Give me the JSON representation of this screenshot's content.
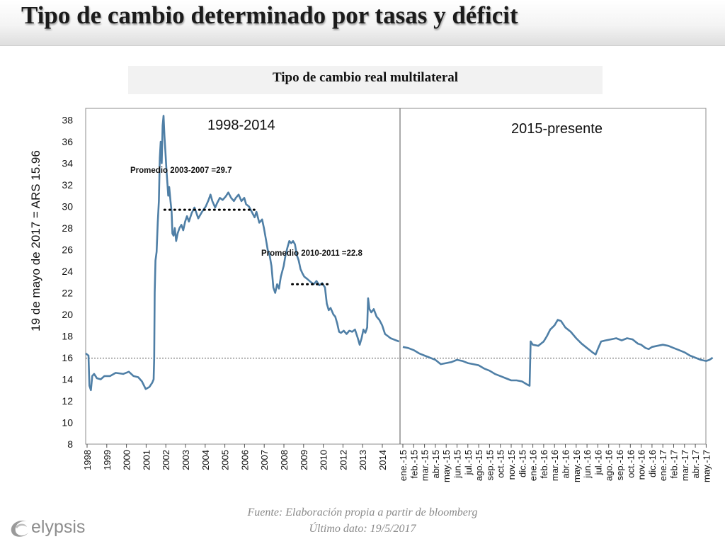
{
  "header": {
    "title": "Tipo de cambio determinado por tasas y déficit"
  },
  "chart_data": {
    "type": "line",
    "title": "Tipo de cambio real multilateral",
    "ylabel": "19 de mayo de 2017 = ARS 15.96",
    "xlabel": "",
    "ylim": [
      8,
      39
    ],
    "yticks": [
      8,
      10,
      12,
      14,
      16,
      18,
      20,
      22,
      24,
      26,
      28,
      30,
      32,
      34,
      36,
      38
    ],
    "reference_line": 15.96,
    "grid": false,
    "legend": "none",
    "x_segments": [
      {
        "label": "1998-2014",
        "x_start": 1998.0,
        "x_end": 2014.75,
        "ticks": [
          "1998",
          "1999",
          "2000",
          "2001",
          "2002",
          "2003",
          "2004",
          "2005",
          "2006",
          "2007",
          "2008",
          "2009",
          "2010",
          "2012",
          "2013",
          "2014"
        ]
      },
      {
        "label": "2015-presente",
        "ticks": [
          "ene.-15",
          "feb.-15",
          "mar.-15",
          "abr.-15",
          "may.-15",
          "jun.-15",
          "jul.-15",
          "ago.-15",
          "sep.-15",
          "oct.-15",
          "nov.-15",
          "dic.-15",
          "ene.-16",
          "feb.-16",
          "mar.-16",
          "abr.-16",
          "may.-16",
          "jun.-16",
          "jul.-16",
          "ago.-16",
          "sep.-16",
          "oct.-16",
          "nov.-16",
          "dic.-16",
          "ene.-17",
          "feb.-17",
          "mar.-17",
          "abr.-17",
          "may.-17"
        ]
      }
    ],
    "series": [
      {
        "segment": 0,
        "color": "#4f7fa6",
        "points": [
          [
            1998.0,
            16.4
          ],
          [
            1998.15,
            16.2
          ],
          [
            1998.2,
            13.4
          ],
          [
            1998.28,
            13.0
          ],
          [
            1998.35,
            14.3
          ],
          [
            1998.45,
            14.5
          ],
          [
            1998.6,
            14.1
          ],
          [
            1998.8,
            14.0
          ],
          [
            1999.0,
            14.3
          ],
          [
            1999.3,
            14.3
          ],
          [
            1999.6,
            14.6
          ],
          [
            2000.0,
            14.5
          ],
          [
            2000.3,
            14.7
          ],
          [
            2000.55,
            14.3
          ],
          [
            2000.8,
            14.2
          ],
          [
            2001.0,
            13.8
          ],
          [
            2001.2,
            13.1
          ],
          [
            2001.4,
            13.3
          ],
          [
            2001.55,
            13.7
          ],
          [
            2001.62,
            14.0
          ],
          [
            2001.65,
            16.0
          ],
          [
            2001.68,
            22.0
          ],
          [
            2001.72,
            25.0
          ],
          [
            2001.78,
            25.8
          ],
          [
            2001.84,
            28.5
          ],
          [
            2001.9,
            30.5
          ],
          [
            2001.95,
            34.5
          ],
          [
            2002.0,
            36.0
          ],
          [
            2002.05,
            34.0
          ],
          [
            2002.1,
            37.5
          ],
          [
            2002.15,
            38.4
          ],
          [
            2002.2,
            36.5
          ],
          [
            2002.25,
            35.0
          ],
          [
            2002.3,
            33.5
          ],
          [
            2002.36,
            32.0
          ],
          [
            2002.4,
            31.0
          ],
          [
            2002.45,
            31.8
          ],
          [
            2002.52,
            30.5
          ],
          [
            2002.58,
            29.5
          ],
          [
            2002.62,
            27.5
          ],
          [
            2002.68,
            27.3
          ],
          [
            2002.75,
            28.0
          ],
          [
            2002.82,
            26.8
          ],
          [
            2002.9,
            27.5
          ],
          [
            2003.0,
            28.0
          ],
          [
            2003.1,
            28.3
          ],
          [
            2003.2,
            27.8
          ],
          [
            2003.3,
            28.6
          ],
          [
            2003.4,
            29.1
          ],
          [
            2003.5,
            28.6
          ],
          [
            2003.65,
            29.4
          ],
          [
            2003.8,
            29.9
          ],
          [
            2003.9,
            29.4
          ],
          [
            2004.0,
            28.9
          ],
          [
            2004.2,
            29.5
          ],
          [
            2004.4,
            30.0
          ],
          [
            2004.55,
            30.6
          ],
          [
            2004.65,
            31.1
          ],
          [
            2004.75,
            30.5
          ],
          [
            2004.9,
            29.9
          ],
          [
            2005.0,
            30.3
          ],
          [
            2005.15,
            30.8
          ],
          [
            2005.3,
            30.6
          ],
          [
            2005.45,
            30.9
          ],
          [
            2005.6,
            31.3
          ],
          [
            2005.75,
            30.8
          ],
          [
            2005.9,
            30.5
          ],
          [
            2006.0,
            30.8
          ],
          [
            2006.15,
            31.1
          ],
          [
            2006.3,
            30.5
          ],
          [
            2006.45,
            30.8
          ],
          [
            2006.55,
            30.2
          ],
          [
            2006.7,
            30.0
          ],
          [
            2006.85,
            29.5
          ],
          [
            2007.0,
            29.0
          ],
          [
            2007.1,
            29.5
          ],
          [
            2007.25,
            28.5
          ],
          [
            2007.4,
            28.8
          ],
          [
            2007.5,
            28.0
          ],
          [
            2007.6,
            27.0
          ],
          [
            2007.7,
            26.0
          ],
          [
            2007.8,
            25.5
          ],
          [
            2007.9,
            24.5
          ],
          [
            2008.0,
            22.5
          ],
          [
            2008.1,
            22.0
          ],
          [
            2008.2,
            22.8
          ],
          [
            2008.3,
            22.4
          ],
          [
            2008.4,
            23.5
          ],
          [
            2008.55,
            24.5
          ],
          [
            2008.65,
            25.5
          ],
          [
            2008.75,
            26.2
          ],
          [
            2008.85,
            26.8
          ],
          [
            2008.95,
            26.6
          ],
          [
            2009.05,
            26.8
          ],
          [
            2009.15,
            26.5
          ],
          [
            2009.25,
            25.5
          ],
          [
            2009.35,
            25.0
          ],
          [
            2009.45,
            24.2
          ],
          [
            2009.55,
            23.8
          ],
          [
            2009.65,
            23.5
          ],
          [
            2009.8,
            23.3
          ],
          [
            2010.0,
            23.0
          ],
          [
            2010.15,
            22.8
          ],
          [
            2010.3,
            23.1
          ],
          [
            2010.45,
            22.7
          ],
          [
            2010.6,
            22.9
          ],
          [
            2010.75,
            22.5
          ],
          [
            2010.85,
            21.0
          ],
          [
            2010.95,
            20.4
          ],
          [
            2011.05,
            20.6
          ],
          [
            2011.2,
            20.0
          ],
          [
            2011.3,
            19.8
          ],
          [
            2011.4,
            19.2
          ],
          [
            2011.5,
            18.4
          ],
          [
            2011.6,
            18.3
          ],
          [
            2011.75,
            18.5
          ],
          [
            2011.9,
            18.2
          ],
          [
            2012.05,
            18.5
          ],
          [
            2012.2,
            18.4
          ],
          [
            2012.35,
            18.6
          ],
          [
            2012.5,
            17.8
          ],
          [
            2012.6,
            17.2
          ],
          [
            2012.7,
            17.8
          ],
          [
            2012.8,
            18.6
          ],
          [
            2012.9,
            18.3
          ],
          [
            2013.0,
            18.8
          ],
          [
            2013.05,
            21.5
          ],
          [
            2013.12,
            20.5
          ],
          [
            2013.22,
            20.2
          ],
          [
            2013.35,
            20.5
          ],
          [
            2013.5,
            19.8
          ],
          [
            2013.65,
            19.5
          ],
          [
            2013.8,
            19.0
          ],
          [
            2013.95,
            18.2
          ],
          [
            2014.1,
            18.0
          ],
          [
            2014.25,
            17.8
          ],
          [
            2014.4,
            17.7
          ],
          [
            2014.55,
            17.6
          ],
          [
            2014.7,
            17.5
          ]
        ]
      },
      {
        "segment": 1,
        "color": "#4f7fa6",
        "points": [
          [
            0.0,
            17.0
          ],
          [
            0.5,
            16.9
          ],
          [
            1.0,
            16.7
          ],
          [
            1.5,
            16.4
          ],
          [
            2.0,
            16.2
          ],
          [
            2.5,
            16.0
          ],
          [
            3.0,
            15.8
          ],
          [
            3.5,
            15.4
          ],
          [
            4.0,
            15.5
          ],
          [
            4.5,
            15.6
          ],
          [
            5.0,
            15.8
          ],
          [
            5.5,
            15.7
          ],
          [
            6.0,
            15.5
          ],
          [
            6.5,
            15.4
          ],
          [
            7.0,
            15.3
          ],
          [
            7.5,
            15.0
          ],
          [
            8.0,
            14.8
          ],
          [
            8.5,
            14.5
          ],
          [
            9.0,
            14.3
          ],
          [
            9.5,
            14.1
          ],
          [
            10.0,
            13.9
          ],
          [
            10.5,
            13.9
          ],
          [
            11.0,
            13.8
          ],
          [
            11.5,
            13.5
          ],
          [
            11.7,
            13.4
          ],
          [
            11.8,
            17.5
          ],
          [
            12.0,
            17.2
          ],
          [
            12.5,
            17.1
          ],
          [
            13.0,
            17.5
          ],
          [
            13.3,
            18.0
          ],
          [
            13.6,
            18.6
          ],
          [
            14.0,
            19.0
          ],
          [
            14.3,
            19.5
          ],
          [
            14.6,
            19.4
          ],
          [
            15.0,
            18.8
          ],
          [
            15.5,
            18.4
          ],
          [
            16.0,
            17.8
          ],
          [
            16.5,
            17.3
          ],
          [
            17.0,
            16.9
          ],
          [
            17.5,
            16.5
          ],
          [
            17.8,
            16.3
          ],
          [
            18.0,
            16.8
          ],
          [
            18.3,
            17.5
          ],
          [
            18.7,
            17.6
          ],
          [
            19.2,
            17.7
          ],
          [
            19.7,
            17.8
          ],
          [
            20.2,
            17.6
          ],
          [
            20.7,
            17.8
          ],
          [
            21.2,
            17.7
          ],
          [
            21.7,
            17.3
          ],
          [
            22.0,
            17.2
          ],
          [
            22.4,
            16.9
          ],
          [
            22.7,
            16.8
          ],
          [
            23.0,
            17.0
          ],
          [
            23.5,
            17.1
          ],
          [
            24.0,
            17.2
          ],
          [
            24.5,
            17.1
          ],
          [
            25.0,
            16.9
          ],
          [
            25.5,
            16.7
          ],
          [
            26.0,
            16.5
          ],
          [
            26.5,
            16.2
          ],
          [
            27.0,
            16.0
          ],
          [
            27.5,
            15.8
          ],
          [
            28.0,
            15.7
          ],
          [
            28.3,
            15.8
          ],
          [
            28.6,
            16.0
          ]
        ]
      }
    ],
    "annotations": [
      {
        "text": "Promedio 2003-2007 =29.7",
        "value": 29.7,
        "x_start": 2002.2,
        "x_end": 2007.0
      },
      {
        "text": "Promedio 2010-2011 =22.8",
        "value": 22.8,
        "x_start": 2009.0,
        "x_end": 2010.9
      }
    ]
  },
  "footer": {
    "source": "Fuente: Elaboración propia a partir de bloomberg",
    "last_data": "Último dato: 19/5/2017",
    "logo_text": "elypsis"
  }
}
